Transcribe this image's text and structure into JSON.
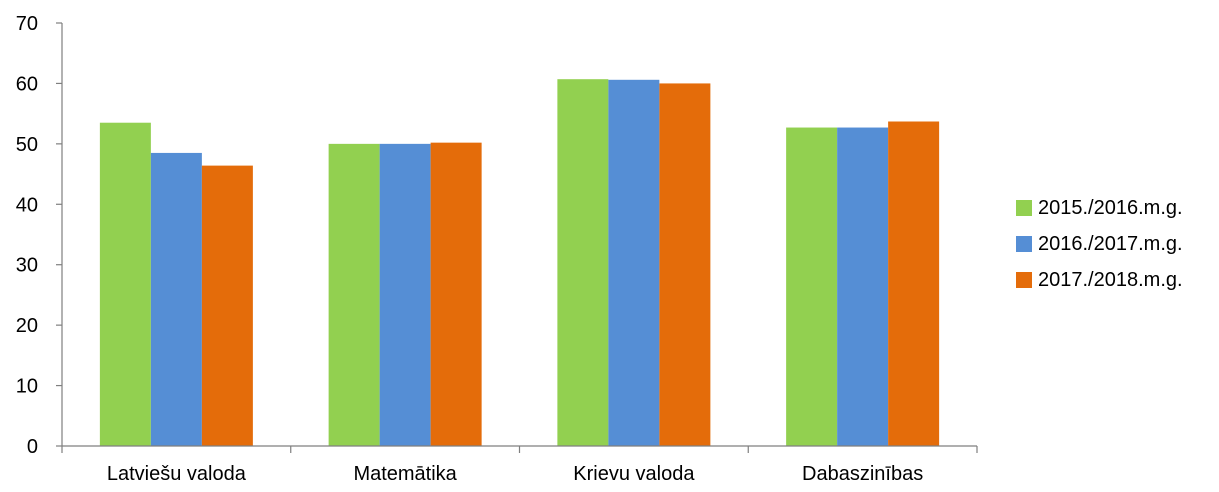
{
  "chart_data": {
    "type": "bar",
    "categories": [
      "Latviešu valoda",
      "Matemātika",
      "Krievu valoda",
      "Dabaszinības"
    ],
    "series": [
      {
        "name": "2015./2016.m.g.",
        "color": "#92d050",
        "values": [
          53.5,
          50.0,
          60.7,
          52.7
        ]
      },
      {
        "name": "2016./2017.m.g.",
        "color": "#558ed5",
        "values": [
          48.5,
          50.0,
          60.6,
          52.7
        ]
      },
      {
        "name": "2017./2018.m.g.",
        "color": "#e46c0a",
        "values": [
          46.4,
          50.2,
          60.0,
          53.7
        ]
      }
    ],
    "ylim": [
      0,
      70
    ],
    "yticks": [
      0,
      10,
      20,
      30,
      40,
      50,
      60,
      70
    ],
    "grid": false,
    "legend_position": "right",
    "title": "",
    "xlabel": "",
    "ylabel": ""
  }
}
